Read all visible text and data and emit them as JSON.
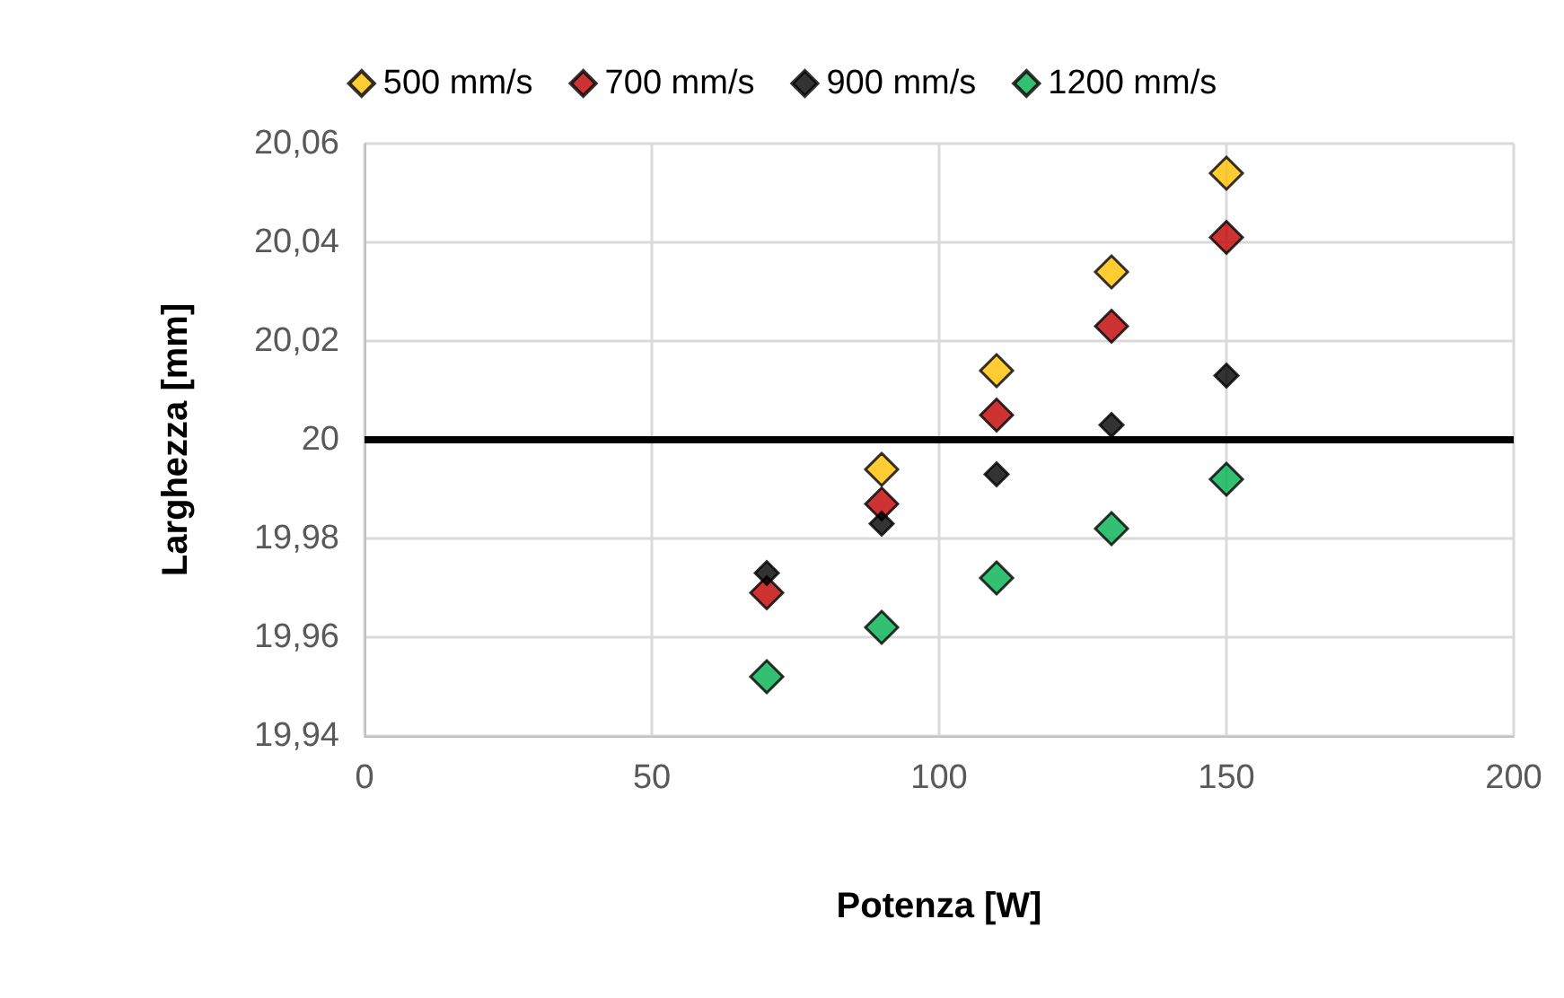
{
  "chart_data": {
    "type": "scatter",
    "xlabel": "Potenza [W]",
    "ylabel": "Larghezza [mm]",
    "x": [
      70,
      90,
      110,
      130,
      150
    ],
    "series": [
      {
        "name": "500 mm/s",
        "color": "#ffc000",
        "values": [
          null,
          19.994,
          20.014,
          20.034,
          20.054
        ]
      },
      {
        "name": "700 mm/s",
        "color": "#c00000",
        "values": [
          19.969,
          19.987,
          20.005,
          20.023,
          20.041
        ]
      },
      {
        "name": "900 mm/s",
        "color": "#000000",
        "values": [
          19.973,
          19.983,
          19.993,
          20.003,
          20.013
        ]
      },
      {
        "name": "1200 mm/s",
        "color": "#00b050",
        "values": [
          19.952,
          19.962,
          19.972,
          19.982,
          19.992
        ]
      }
    ],
    "xlim": [
      0,
      200
    ],
    "xticks": [
      0,
      50,
      100,
      150,
      200
    ],
    "ylim": [
      19.94,
      20.06
    ],
    "yticks": [
      {
        "value": 19.94,
        "label": "19,94"
      },
      {
        "value": 19.96,
        "label": "19,96"
      },
      {
        "value": 19.98,
        "label": "19,98"
      },
      {
        "value": 20,
        "label": "20"
      },
      {
        "value": 20.02,
        "label": "20,02"
      },
      {
        "value": 20.04,
        "label": "20,04"
      },
      {
        "value": 20.06,
        "label": "20,06"
      }
    ],
    "ref_lines": [
      {
        "axis": "y",
        "value": 20,
        "color": "#000000"
      }
    ],
    "grid": true,
    "legend": "top",
    "marker": "diamond"
  }
}
